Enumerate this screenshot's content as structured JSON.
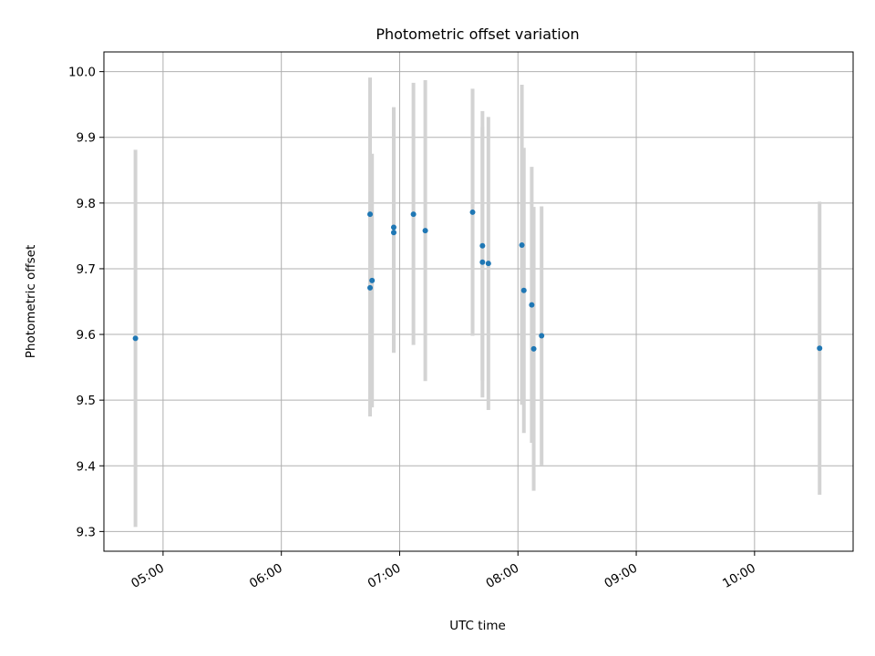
{
  "chart_data": {
    "type": "scatter",
    "title": "Photometric offset variation",
    "xlabel": "UTC time",
    "ylabel": "Photometric offset",
    "x_axis_type": "time",
    "xlim": [
      "04:30",
      "10:50"
    ],
    "ylim": [
      9.27,
      10.03
    ],
    "x_ticks": [
      "05:00",
      "06:00",
      "07:00",
      "08:00",
      "09:00",
      "10:00"
    ],
    "y_ticks": [
      "9.3",
      "9.4",
      "9.5",
      "9.6",
      "9.7",
      "9.8",
      "9.9",
      "10.0"
    ],
    "grid": true,
    "legend": "none",
    "colors": {
      "points": "#1f77b4",
      "error_bars": "#d3d3d3",
      "grid": "#b0b0b0"
    },
    "points": [
      {
        "x": "04:46",
        "y": 9.594,
        "y_low": 9.307,
        "y_high": 9.881
      },
      {
        "x": "06:45",
        "y": 9.783,
        "y_low": 9.575,
        "y_high": 9.991
      },
      {
        "x": "06:45",
        "y": 9.671,
        "y_low": 9.475,
        "y_high": 9.867
      },
      {
        "x": "06:46",
        "y": 9.682,
        "y_low": 9.489,
        "y_high": 9.875
      },
      {
        "x": "06:57",
        "y": 9.763,
        "y_low": 9.58,
        "y_high": 9.946
      },
      {
        "x": "06:57",
        "y": 9.755,
        "y_low": 9.572,
        "y_high": 9.938
      },
      {
        "x": "07:07",
        "y": 9.783,
        "y_low": 9.584,
        "y_high": 9.983
      },
      {
        "x": "07:13",
        "y": 9.758,
        "y_low": 9.529,
        "y_high": 9.987
      },
      {
        "x": "07:37",
        "y": 9.786,
        "y_low": 9.598,
        "y_high": 9.974
      },
      {
        "x": "07:42",
        "y": 9.735,
        "y_low": 9.53,
        "y_high": 9.94
      },
      {
        "x": "07:42",
        "y": 9.71,
        "y_low": 9.504,
        "y_high": 9.916
      },
      {
        "x": "07:45",
        "y": 9.708,
        "y_low": 9.485,
        "y_high": 9.931
      },
      {
        "x": "08:02",
        "y": 9.736,
        "y_low": 9.493,
        "y_high": 9.98
      },
      {
        "x": "08:03",
        "y": 9.667,
        "y_low": 9.45,
        "y_high": 9.884
      },
      {
        "x": "08:07",
        "y": 9.645,
        "y_low": 9.435,
        "y_high": 9.855
      },
      {
        "x": "08:08",
        "y": 9.578,
        "y_low": 9.362,
        "y_high": 9.794
      },
      {
        "x": "08:12",
        "y": 9.598,
        "y_low": 9.401,
        "y_high": 9.795
      },
      {
        "x": "10:33",
        "y": 9.579,
        "y_low": 9.356,
        "y_high": 9.802
      }
    ]
  }
}
